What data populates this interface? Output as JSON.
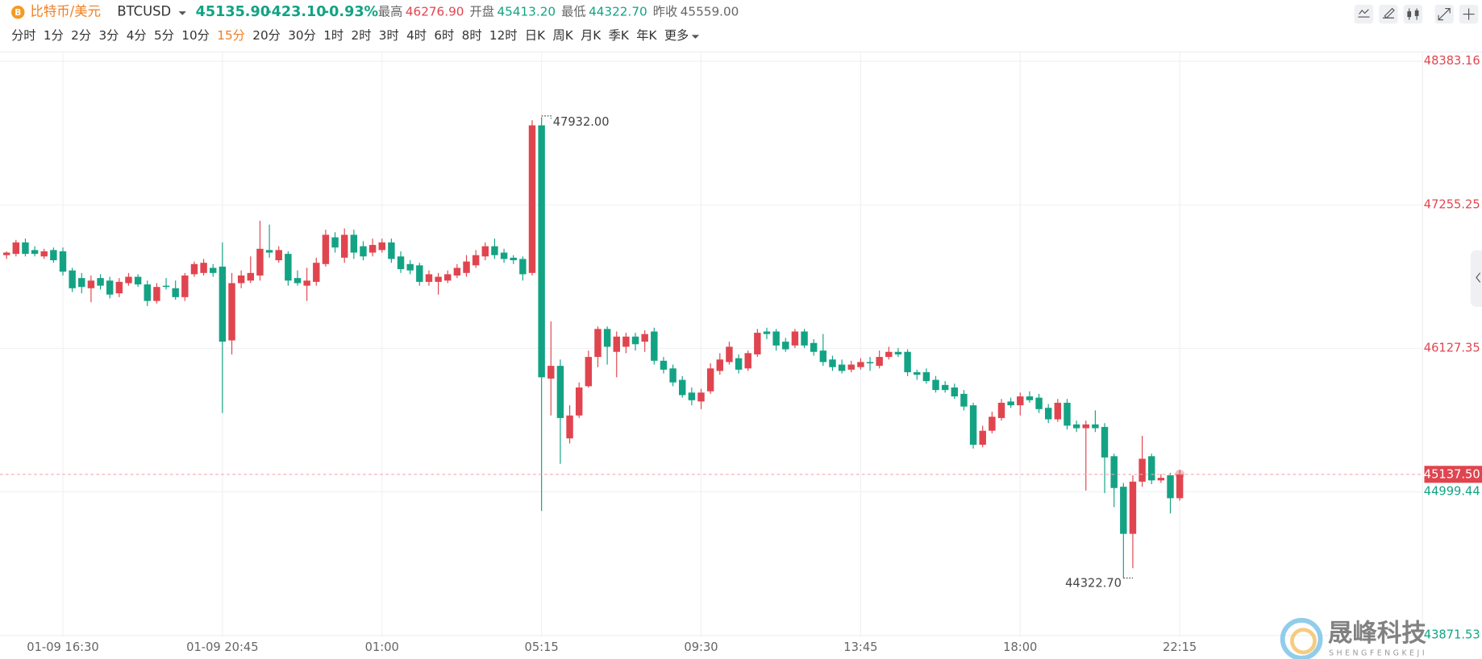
{
  "header": {
    "name": "比特币/美元",
    "symbol": "BTCUSD",
    "price": "45135.90",
    "change": "-423.10",
    "change_pct": "-0.93%",
    "stats": [
      {
        "label": "最高",
        "value": "46276.90"
      },
      {
        "label": "开盘",
        "value": "45413.20"
      },
      {
        "label": "最低",
        "value": "44322.70"
      },
      {
        "label": "昨收",
        "value": "45559.00"
      }
    ]
  },
  "timeframes": [
    "分时",
    "1分",
    "2分",
    "3分",
    "4分",
    "5分",
    "10分",
    "15分",
    "20分",
    "30分",
    "1时",
    "2时",
    "3时",
    "4时",
    "6时",
    "8时",
    "12时",
    "日K",
    "周K",
    "月K",
    "季K",
    "年K",
    "更多"
  ],
  "active_timeframe": "15分",
  "watermark": {
    "title": "晟峰科技",
    "subtitle": "SHENGFENGKEJI"
  },
  "chart_data": {
    "type": "candlestick",
    "categories": [
      null,
      null,
      null,
      null,
      null,
      null,
      "01-09 16:30",
      null,
      null,
      null,
      null,
      null,
      null,
      null,
      null,
      null,
      null,
      null,
      null,
      null,
      null,
      null,
      null,
      "01-09 20:45",
      null,
      null,
      null,
      null,
      null,
      null,
      null,
      null,
      null,
      null,
      null,
      null,
      null,
      null,
      null,
      null,
      "01:00",
      null,
      null,
      null,
      null,
      null,
      null,
      null,
      null,
      null,
      null,
      null,
      null,
      null,
      null,
      null,
      null,
      "05:15",
      null,
      null,
      null,
      null,
      null,
      null,
      null,
      null,
      null,
      null,
      null,
      null,
      null,
      null,
      null,
      null,
      "09:30",
      null,
      null,
      null,
      null,
      null,
      null,
      null,
      null,
      null,
      null,
      null,
      null,
      null,
      null,
      null,
      null,
      "13:45",
      null,
      null,
      null,
      null,
      null,
      null,
      null,
      null,
      null,
      null,
      null,
      null,
      null,
      null,
      null,
      null,
      "18:00",
      null,
      null,
      null,
      null,
      null,
      null,
      null,
      null,
      null,
      null,
      null,
      null,
      null,
      null,
      null,
      null,
      "22:15"
    ],
    "open": [
      46860,
      46870,
      46960,
      46900,
      46850,
      46900,
      46890,
      46740,
      46680,
      46600,
      46680,
      46660,
      46560,
      46640,
      46690,
      46630,
      46500,
      46620,
      46600,
      46530,
      46710,
      46720,
      46760,
      46770,
      46190,
      46640,
      46660,
      46700,
      46900,
      46820,
      46870,
      46680,
      46620,
      46650,
      46790,
      47000,
      46840,
      47020,
      46930,
      46880,
      46900,
      46960,
      46850,
      46790,
      46780,
      46650,
      46650,
      46660,
      46700,
      46720,
      46780,
      46850,
      46930,
      46880,
      46840,
      46830,
      46720,
      47880,
      45890,
      45990,
      45420,
      45600,
      45830,
      46060,
      46280,
      46100,
      46140,
      46220,
      46180,
      46260,
      46030,
      45970,
      45880,
      45780,
      45710,
      45790,
      45950,
      46020,
      46050,
      45970,
      46080,
      46260,
      46260,
      46180,
      46150,
      46260,
      46170,
      46110,
      46040,
      46000,
      45960,
      45980,
      46020,
      45990,
      46060,
      46100,
      46100,
      45940,
      45940,
      45880,
      45840,
      45820,
      45770,
      45680,
      45370,
      45480,
      45580,
      45710,
      45680,
      45750,
      45740,
      45660,
      45570,
      45700,
      45530,
      45500,
      45530,
      45510,
      45280,
      45040,
      44670,
      45080,
      45280,
      45090,
      45130,
      44950
    ],
    "high": [
      46890,
      46980,
      46990,
      46930,
      46910,
      46920,
      46920,
      46760,
      46720,
      46700,
      46710,
      46690,
      46680,
      46720,
      46710,
      46660,
      46640,
      46680,
      46660,
      46720,
      46810,
      46830,
      46790,
      46960,
      46720,
      46740,
      46850,
      47130,
      47100,
      46930,
      46890,
      46740,
      46760,
      46840,
      47060,
      47040,
      47070,
      47060,
      46970,
      46990,
      46990,
      46990,
      46890,
      46820,
      46800,
      46740,
      46720,
      46740,
      46790,
      46860,
      46900,
      46960,
      46990,
      46910,
      46860,
      46850,
      47920,
      47932,
      46340,
      46040,
      45680,
      45860,
      46110,
      46300,
      46300,
      46260,
      46250,
      46250,
      46270,
      46290,
      46060,
      46000,
      45910,
      45820,
      45810,
      46010,
      46090,
      46180,
      46080,
      46110,
      46280,
      46290,
      46280,
      46210,
      46280,
      46280,
      46200,
      46240,
      46070,
      46040,
      46030,
      46050,
      46060,
      46110,
      46140,
      46130,
      46120,
      45960,
      45970,
      45910,
      45870,
      45850,
      45800,
      45700,
      45520,
      45630,
      45730,
      45740,
      45780,
      45790,
      45770,
      45690,
      45730,
      45730,
      45560,
      45560,
      45640,
      45540,
      45300,
      45070,
      45130,
      45440,
      45300,
      45140,
      45150,
      45170
    ],
    "low": [
      46830,
      46850,
      46850,
      46850,
      46830,
      46800,
      46700,
      46570,
      46560,
      46490,
      46590,
      46520,
      46530,
      46620,
      46610,
      46460,
      46480,
      46590,
      46510,
      46500,
      46690,
      46700,
      46690,
      45620,
      46080,
      46600,
      46640,
      46660,
      46840,
      46800,
      46620,
      46620,
      46500,
      46620,
      46770,
      46880,
      46800,
      46830,
      46820,
      46850,
      46880,
      46800,
      46720,
      46710,
      46620,
      46620,
      46550,
      46640,
      46680,
      46690,
      46760,
      46820,
      46830,
      46800,
      46790,
      46660,
      46700,
      44850,
      45600,
      45220,
      45380,
      45580,
      45820,
      45980,
      46000,
      45900,
      46090,
      46110,
      46100,
      46000,
      45930,
      45830,
      45740,
      45680,
      45650,
      45770,
      45920,
      46000,
      45930,
      45950,
      46060,
      46200,
      46110,
      46100,
      46130,
      46130,
      46070,
      45990,
      45950,
      45930,
      45940,
      45960,
      45950,
      45970,
      46040,
      46060,
      45910,
      45880,
      45850,
      45780,
      45780,
      45730,
      45640,
      45340,
      45350,
      45460,
      45560,
      45660,
      45600,
      45700,
      45620,
      45540,
      45550,
      45490,
      45470,
      45010,
      45470,
      44990,
      44880,
      44322.7,
      44400,
      45040,
      45060,
      45070,
      44830,
      44930
    ],
    "close": [
      46880,
      46960,
      46870,
      46870,
      46890,
      46820,
      46730,
      46600,
      46610,
      46660,
      46620,
      46550,
      46650,
      46690,
      46630,
      46500,
      46610,
      46610,
      46530,
      46700,
      46790,
      46800,
      46720,
      46180,
      46640,
      46700,
      46720,
      46910,
      46880,
      46900,
      46660,
      46640,
      46660,
      46800,
      47020,
      46920,
      47020,
      46880,
      46850,
      46940,
      46960,
      46830,
      46750,
      46740,
      46650,
      46710,
      46690,
      46710,
      46760,
      46810,
      46860,
      46930,
      46860,
      46830,
      46820,
      46710,
      47880,
      45900,
      45990,
      45580,
      45600,
      45820,
      46060,
      46280,
      46140,
      46220,
      46220,
      46160,
      46240,
      46030,
      45960,
      45860,
      45760,
      45720,
      45780,
      45970,
      46040,
      46140,
      45960,
      46090,
      46250,
      46240,
      46150,
      46120,
      46260,
      46150,
      46100,
      46020,
      45980,
      45950,
      46000,
      46020,
      46010,
      46060,
      46100,
      46080,
      45940,
      45920,
      45870,
      45800,
      45800,
      45750,
      45670,
      45370,
      45480,
      45590,
      45700,
      45680,
      45750,
      45720,
      45650,
      45570,
      45700,
      45520,
      45500,
      45530,
      45500,
      45270,
      45030,
      44670,
      45080,
      45260,
      45090,
      45110,
      44950,
      45137.5
    ],
    "up_color": "#e0454f",
    "down_color": "#13a384",
    "ylim": [
      43857,
      48457
    ],
    "yticks": [
      48383.16,
      47255.25,
      46127.35,
      44999.44,
      43871.53
    ],
    "grid": true,
    "high_label": "47932.00",
    "low_label": "44322.70",
    "last_price_label": "45137.50"
  }
}
